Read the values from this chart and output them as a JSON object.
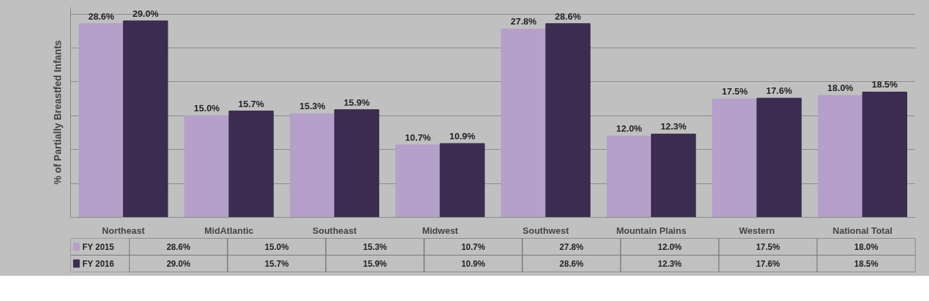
{
  "chart_data": {
    "type": "bar",
    "ylabel": "% of Partially Breastfed Infants",
    "categories": [
      "Northeast",
      "MidAtlantic",
      "Southeast",
      "Midwest",
      "Southwest",
      "Mountain Plains",
      "Western",
      "National Total"
    ],
    "series": [
      {
        "name": "FY 2015",
        "color": "#b4a0c8",
        "values": [
          28.6,
          15.0,
          15.3,
          10.7,
          27.8,
          12.0,
          17.5,
          18.0
        ],
        "value_labels": [
          "28.6%",
          "15.0%",
          "15.3%",
          "10.7%",
          "27.8%",
          "12.0%",
          "17.5%",
          "18.0%"
        ]
      },
      {
        "name": "FY 2016",
        "color": "#3c2d50",
        "values": [
          29.0,
          15.7,
          15.9,
          10.9,
          28.6,
          12.3,
          17.6,
          18.5
        ],
        "value_labels": [
          "29.0%",
          "15.7%",
          "15.9%",
          "10.9%",
          "28.6%",
          "12.3%",
          "17.6%",
          "18.5%"
        ]
      }
    ],
    "ylim": [
      0,
      31
    ],
    "yticks": [
      {
        "value": 0,
        "label": null
      },
      {
        "value": 5,
        "label": null
      },
      {
        "value": 10,
        "label": null
      },
      {
        "value": 15,
        "label": null
      },
      {
        "value": 20,
        "label": null
      },
      {
        "value": 25,
        "label": null
      },
      {
        "value": 30,
        "label": null
      }
    ],
    "grid": "y",
    "tick_labels": "x",
    "legend": "bottom"
  }
}
